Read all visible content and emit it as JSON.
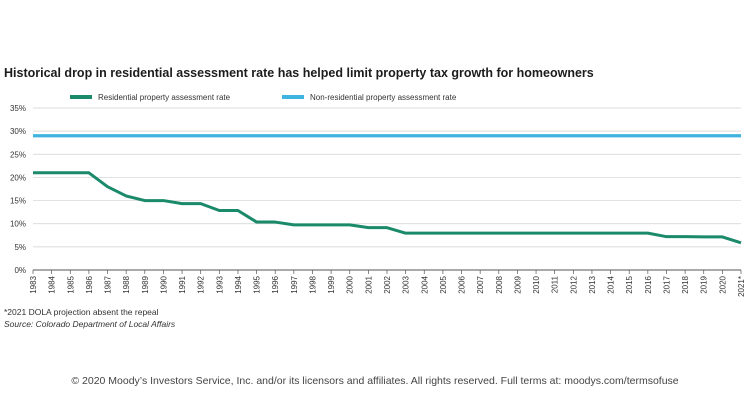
{
  "chart_data": {
    "type": "line",
    "title": "Historical drop in residential assessment rate has helped limit property tax growth for homeowners",
    "categories": [
      "1983",
      "1984",
      "1985",
      "1986",
      "1987",
      "1988",
      "1989",
      "1990",
      "1991",
      "1992",
      "1993",
      "1994",
      "1995",
      "1996",
      "1997",
      "1998",
      "1999",
      "2000",
      "2001",
      "2002",
      "2003",
      "2004",
      "2005",
      "2006",
      "2007",
      "2008",
      "2009",
      "2010",
      "2011",
      "2012",
      "2013",
      "2014",
      "2015",
      "2016",
      "2017",
      "2018",
      "2019",
      "2020",
      "2021*"
    ],
    "series": [
      {
        "name": "Residential property assessment rate",
        "color": "#1a8a6a",
        "values": [
          21,
          21,
          21,
          21,
          18,
          16,
          15,
          15,
          14.34,
          14.34,
          12.86,
          12.86,
          10.36,
          10.36,
          9.74,
          9.74,
          9.74,
          9.74,
          9.15,
          9.15,
          7.96,
          7.96,
          7.96,
          7.96,
          7.96,
          7.96,
          7.96,
          7.96,
          7.96,
          7.96,
          7.96,
          7.96,
          7.96,
          7.96,
          7.2,
          7.2,
          7.15,
          7.15,
          5.88
        ]
      },
      {
        "name": "Non-residential property assessment rate",
        "color": "#3fb4e0",
        "values": [
          29,
          29,
          29,
          29,
          29,
          29,
          29,
          29,
          29,
          29,
          29,
          29,
          29,
          29,
          29,
          29,
          29,
          29,
          29,
          29,
          29,
          29,
          29,
          29,
          29,
          29,
          29,
          29,
          29,
          29,
          29,
          29,
          29,
          29,
          29,
          29,
          29,
          29,
          29
        ]
      }
    ],
    "ylim": [
      0,
      35
    ],
    "yticks": [
      0,
      5,
      10,
      15,
      20,
      25,
      30,
      35
    ],
    "ytick_labels": [
      "0%",
      "5%",
      "10%",
      "15%",
      "20%",
      "25%",
      "30%",
      "35%"
    ],
    "xlabel": "",
    "ylabel": "",
    "grid": true,
    "legend_position": "top"
  },
  "footnote": "*2021 DOLA projection absent the repeal",
  "source": "Source: Colorado Department of Local Affairs",
  "copyright": "© 2020 Moody’s Investors Service, Inc. and/or its licensors and affiliates. All rights reserved. Full terms at: moodys.com/termsofuse"
}
